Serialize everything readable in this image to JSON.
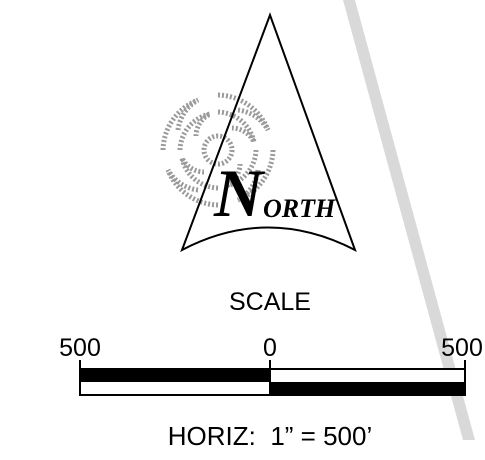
{
  "north_arrow": {
    "label": [
      "N",
      "ORTH"
    ]
  },
  "scale_bar": {
    "title": "SCALE",
    "labels": [
      "500",
      "0",
      "500"
    ],
    "note": "HORIZ:  1” = 500’"
  }
}
